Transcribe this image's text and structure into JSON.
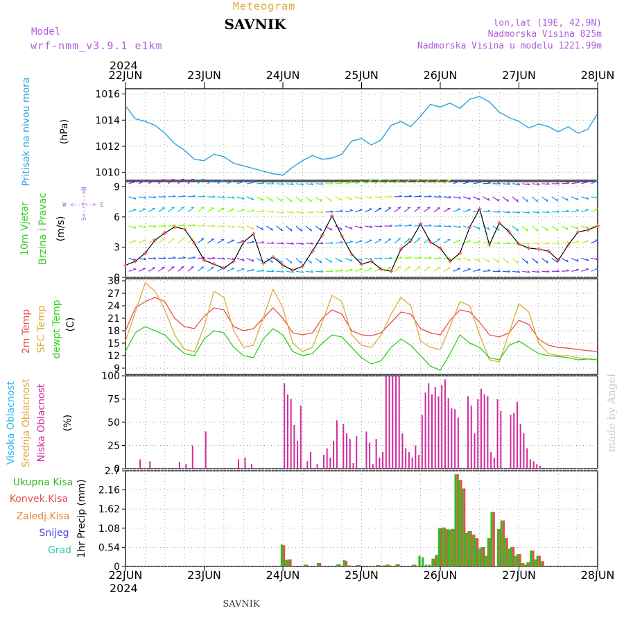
{
  "header": {
    "meteogram_label": "Meteogram",
    "station": "SAVNIK",
    "model_label": "Model",
    "model_name": "wrf-nmm_v3.9.1 e1km",
    "lonlat": "lon,lat (19E, 42.9N)",
    "elevation": "Nadmorska Visina 825m",
    "model_elevation": "Nadmorska Visina u modelu 1221.99m",
    "year_top": "2024",
    "year_bottom": "2024",
    "footer_station": "SAVNIK",
    "credit": "made by Angel"
  },
  "colors": {
    "pressure": "#29a3e0",
    "temp2m": "#e8504a",
    "sfc_temp": "#e0a838",
    "dewpt": "#33cc22",
    "wind_speed": "#000000",
    "wind_markers": "#e8504a",
    "title_orange": "#e0a838",
    "meta_purple": "#b05de0",
    "high_cloud": "#29b8e8",
    "mid_cloud": "#d8a838",
    "low_cloud": "#d02a9e",
    "total_precip": "#33bb22",
    "convective": "#e8504a",
    "freezing": "#f08030",
    "snow": "#4848e8",
    "graupel": "#33c8b8",
    "credit": "#cccccc"
  },
  "dates": [
    "22JUN",
    "23JUN",
    "24JUN",
    "25JUN",
    "26JUN",
    "27JUN",
    "28JUN"
  ],
  "panels": {
    "pressure": {
      "label": "Pritisak na nivou mora",
      "unit": "(hPa)",
      "ticks": [
        "1010",
        "1012",
        "1014",
        "1016"
      ]
    },
    "wind": {
      "label1": "10m Vjetar",
      "label2": "Brzina i Pravac",
      "unit": "(m/s)",
      "ticks": [
        "0",
        "3",
        "6",
        "9"
      ],
      "compass_we": "W <--|--> E",
      "compass_ns": "S<--|-->N"
    },
    "temp": {
      "label1": "2m Temp",
      "label2": "SFC Temp",
      "label3": "dewpt Temp",
      "unit": "(C)",
      "ticks": [
        "9",
        "12",
        "15",
        "18",
        "21",
        "24",
        "27",
        "30"
      ]
    },
    "cloud": {
      "label1": "Visoka Oblacnost",
      "label2": "Srednja Oblacnost",
      "label3": "Niska Oblacnost",
      "unit": "(%)",
      "ticks": [
        "0",
        "25",
        "50",
        "75",
        "100"
      ]
    },
    "precip": {
      "label": "1hr Precip (mm)",
      "ticks": [
        "0",
        "0.54",
        "1.08",
        "1.62",
        "2.16",
        "2.7"
      ],
      "legend": [
        "Ukupna Kisa",
        "Konvek.Kisa",
        "Zaledj.Kisa",
        "Snijeg",
        "Grad"
      ]
    }
  },
  "chart_data": [
    {
      "type": "line",
      "title": "Pritisak na nivou mora",
      "ylabel": "(hPa)",
      "ylim": [
        1009.4,
        1016.4
      ],
      "x": [
        0,
        3,
        6,
        9,
        12,
        15,
        18,
        21,
        24,
        27,
        30,
        33,
        36,
        39,
        42,
        45,
        48,
        51,
        54,
        57,
        60,
        63,
        66,
        69,
        72,
        75,
        78,
        81,
        84,
        87,
        90,
        93,
        96,
        99,
        102,
        105,
        108,
        111,
        114,
        117,
        120,
        123,
        126,
        129,
        132,
        135,
        138,
        141,
        144
      ],
      "series": [
        {
          "values": [
            1015.1,
            1014.1,
            1013.9,
            1013.6,
            1013.0,
            1012.2,
            1011.7,
            1011.0,
            1010.9,
            1011.4,
            1011.2,
            1010.7,
            1010.5,
            1010.3,
            1010.1,
            1009.9,
            1009.8,
            1010.4,
            1010.9,
            1011.3,
            1011.0,
            1011.1,
            1011.4,
            1012.4,
            1012.6,
            1012.1,
            1012.5,
            1013.6,
            1013.9,
            1013.5,
            1014.3,
            1015.2,
            1015.0,
            1015.3,
            1014.9,
            1015.6,
            1015.8,
            1015.4,
            1014.6,
            1014.2,
            1013.9,
            1013.4,
            1013.7,
            1013.5,
            1013.1,
            1013.5,
            1013.0,
            1013.3,
            1014.5
          ]
        }
      ]
    },
    {
      "type": "line",
      "title": "10m Vjetar Brzina i Pravac",
      "ylabel": "(m/s)",
      "ylim": [
        0,
        9.5
      ],
      "x": [
        0,
        3,
        6,
        9,
        12,
        15,
        18,
        21,
        24,
        27,
        30,
        33,
        36,
        39,
        42,
        45,
        48,
        51,
        54,
        57,
        60,
        63,
        66,
        69,
        72,
        75,
        78,
        81,
        84,
        87,
        90,
        93,
        96,
        99,
        102,
        105,
        108,
        111,
        114,
        117,
        120,
        123,
        126,
        129,
        132,
        135,
        138,
        141,
        144
      ],
      "series": [
        {
          "values": [
            1.2,
            1.6,
            2.4,
            3.7,
            4.4,
            5.0,
            4.8,
            3.4,
            1.7,
            1.3,
            0.9,
            1.6,
            3.5,
            4.3,
            1.4,
            2.0,
            1.2,
            0.7,
            1.1,
            2.6,
            4.2,
            6.1,
            4.1,
            2.3,
            1.3,
            1.6,
            0.8,
            0.6,
            2.8,
            3.6,
            5.3,
            3.5,
            2.9,
            1.6,
            2.4,
            5.0,
            6.8,
            3.2,
            5.4,
            4.5,
            3.3,
            2.9,
            2.8,
            2.6,
            1.7,
            3.2,
            4.5,
            4.7,
            5.1
          ]
        }
      ]
    },
    {
      "type": "line",
      "title": "2m Temp / SFC Temp / dewpt Temp",
      "ylabel": "(C)",
      "ylim": [
        7.5,
        30.5
      ],
      "x": [
        0,
        3,
        6,
        9,
        12,
        15,
        18,
        21,
        24,
        27,
        30,
        33,
        36,
        39,
        42,
        45,
        48,
        51,
        54,
        57,
        60,
        63,
        66,
        69,
        72,
        75,
        78,
        81,
        84,
        87,
        90,
        93,
        96,
        99,
        102,
        105,
        108,
        111,
        114,
        117,
        120,
        123,
        126,
        129,
        132,
        135,
        138,
        141,
        144
      ],
      "series": [
        {
          "name": "2m Temp",
          "values": [
            18.0,
            23.5,
            25.0,
            26.0,
            25.0,
            21.0,
            19.0,
            18.5,
            21.5,
            23.5,
            23.0,
            19.0,
            18.0,
            18.5,
            21.0,
            23.5,
            21.0,
            17.5,
            17.0,
            17.5,
            21.0,
            23.0,
            22.0,
            18.0,
            17.0,
            16.8,
            17.5,
            20.0,
            22.5,
            22.0,
            18.5,
            17.5,
            17.0,
            20.5,
            23.0,
            22.5,
            20.0,
            17.0,
            16.5,
            17.5,
            20.5,
            19.5,
            16.0,
            14.5,
            14.0,
            13.8,
            13.5,
            13.2,
            13.0
          ]
        },
        {
          "name": "SFC Temp",
          "values": [
            15.5,
            22.5,
            29.5,
            27.5,
            23.0,
            17.0,
            13.5,
            13.0,
            19.0,
            27.5,
            26.0,
            18.0,
            14.0,
            14.5,
            21.0,
            28.0,
            23.5,
            15.0,
            13.0,
            14.0,
            20.0,
            26.5,
            25.0,
            17.0,
            14.5,
            14.0,
            17.0,
            22.0,
            26.0,
            24.0,
            15.5,
            14.0,
            13.5,
            19.0,
            25.0,
            24.0,
            17.0,
            11.0,
            10.5,
            17.5,
            24.5,
            22.5,
            15.0,
            12.5,
            12.0,
            12.0,
            11.5,
            11.2,
            11.0
          ]
        },
        {
          "name": "dewpt Temp",
          "values": [
            13.0,
            17.5,
            19.0,
            18.0,
            17.0,
            14.5,
            12.5,
            12.0,
            16.0,
            18.0,
            17.5,
            14.0,
            12.0,
            11.5,
            16.0,
            18.5,
            17.0,
            13.0,
            12.0,
            12.5,
            15.0,
            17.0,
            16.5,
            14.0,
            11.5,
            10.0,
            10.8,
            14.0,
            16.0,
            14.5,
            12.0,
            9.5,
            8.5,
            12.5,
            17.0,
            15.0,
            14.0,
            11.5,
            11.0,
            14.5,
            15.5,
            14.0,
            12.5,
            12.0,
            11.8,
            11.5,
            11.0,
            11.2,
            11.0
          ]
        }
      ]
    },
    {
      "type": "bar",
      "title": "Visoka / Srednja / Niska Oblacnost",
      "ylabel": "(%)",
      "ylim": [
        0,
        100
      ],
      "x": [
        4,
        7,
        16,
        18,
        20,
        24,
        34,
        36,
        38,
        48,
        49,
        50,
        51,
        52,
        53,
        55,
        56,
        58,
        60,
        61,
        62,
        63,
        64,
        66,
        67,
        68,
        69,
        70,
        73,
        74,
        75,
        76,
        77,
        78,
        79,
        80,
        81,
        82,
        83,
        84,
        85,
        86,
        87,
        88,
        89,
        90,
        91,
        92,
        93,
        94,
        95,
        96,
        97,
        98,
        99,
        100,
        101,
        104,
        105,
        106,
        107,
        108,
        109,
        110,
        111,
        112,
        113,
        114,
        117,
        118,
        119,
        120,
        121,
        122,
        123,
        124,
        125,
        126,
        130,
        131,
        132,
        133,
        134,
        135
      ],
      "series": [
        {
          "name": "Visoka Oblacnost",
          "values": [
            0,
            0,
            0,
            0,
            0,
            0,
            0,
            0,
            0,
            0,
            0,
            0,
            0,
            0,
            0,
            0,
            0,
            0,
            0,
            0,
            0,
            0,
            0,
            0,
            0,
            0,
            0,
            0,
            0,
            0,
            0,
            0,
            0,
            0,
            0,
            0,
            0,
            0,
            0,
            0,
            0,
            0,
            0,
            0,
            0,
            0,
            0,
            0,
            0,
            0,
            0,
            0,
            0,
            0,
            0,
            0,
            0,
            0,
            0,
            0,
            0,
            0,
            0,
            0,
            0,
            0,
            0,
            0,
            0,
            0,
            0,
            0,
            0,
            0,
            0,
            0,
            0,
            0,
            0,
            0,
            0,
            0,
            0,
            0
          ]
        },
        {
          "name": "Srednja Oblacnost",
          "values": [
            0,
            0,
            0,
            0,
            0,
            0,
            0,
            0,
            0,
            0,
            0,
            0,
            0,
            0,
            0,
            0,
            0,
            0,
            0,
            0,
            0,
            0,
            0,
            0,
            0,
            0,
            0,
            0,
            0,
            0,
            0,
            0,
            0,
            0,
            0,
            0,
            0,
            0,
            0,
            0,
            0,
            0,
            0,
            0,
            0,
            0,
            0,
            0,
            0,
            0,
            0,
            0,
            0,
            0,
            0,
            0,
            0,
            0,
            0,
            0,
            0,
            0,
            0,
            0,
            0,
            0,
            0,
            0,
            0,
            0,
            0,
            0,
            0,
            0,
            0,
            0,
            0,
            0,
            0,
            0,
            0,
            0,
            0,
            0
          ]
        },
        {
          "name": "Niska Oblacnost",
          "values": [
            10,
            8,
            7,
            5,
            25,
            40,
            10,
            12,
            5,
            92,
            80,
            75,
            47,
            30,
            68,
            8,
            18,
            5,
            15,
            22,
            12,
            30,
            52,
            48,
            38,
            32,
            6,
            35,
            40,
            28,
            5,
            32,
            12,
            18,
            100,
            100,
            100,
            100,
            100,
            38,
            22,
            18,
            12,
            25,
            15,
            58,
            82,
            92,
            80,
            88,
            78,
            90,
            96,
            76,
            65,
            64,
            55,
            78,
            68,
            38,
            75,
            86,
            80,
            78,
            18,
            12,
            75,
            62,
            58,
            60,
            72,
            48,
            38,
            22,
            10,
            8,
            5,
            3,
            0,
            0,
            0,
            0,
            0,
            0
          ]
        }
      ]
    },
    {
      "type": "bar",
      "title": "1hr Precip",
      "ylabel": "(mm)",
      "ylim": [
        0,
        2.7
      ],
      "x": [
        48,
        49,
        50,
        55,
        59,
        65,
        67,
        68,
        71,
        75,
        77,
        79,
        80,
        83,
        88,
        89,
        90,
        91,
        92,
        93,
        94,
        95,
        96,
        97,
        98,
        99,
        100,
        101,
        102,
        103,
        104,
        105,
        106,
        107,
        108,
        109,
        110,
        111,
        112,
        114,
        115,
        116,
        117,
        118,
        119,
        120,
        121,
        122,
        123,
        124,
        125,
        126,
        127
      ],
      "series": [
        {
          "name": "Ukupna Kisa",
          "values": [
            0.62,
            0.18,
            0.2,
            0.05,
            0.1,
            0.06,
            0.18,
            0.03,
            0.04,
            0.02,
            0.04,
            0.03,
            0.05,
            0.06,
            0.05,
            0.02,
            0.3,
            0.26,
            0.05,
            0.05,
            0.22,
            0.32,
            1.08,
            1.1,
            1.05,
            1.04,
            1.06,
            2.6,
            2.44,
            2.2,
            0.95,
            1.0,
            0.9,
            0.8,
            0.5,
            0.55,
            0.3,
            0.8,
            1.54,
            1.06,
            1.3,
            0.8,
            0.5,
            0.55,
            0.3,
            0.35,
            0.1,
            0.05,
            0.12,
            0.45,
            0.2,
            0.3,
            0.15
          ]
        },
        {
          "name": "Konvek.Kisa",
          "values": [
            0.6,
            0.18,
            0.2,
            0.05,
            0.1,
            0.06,
            0.16,
            0.03,
            0.04,
            0.02,
            0.04,
            0.03,
            0.05,
            0.06,
            0.05,
            0.02,
            0.0,
            0.0,
            0.0,
            0.0,
            0.22,
            0.32,
            1.08,
            1.1,
            1.05,
            1.04,
            1.06,
            2.6,
            2.44,
            2.2,
            0.95,
            1.0,
            0.9,
            0.8,
            0.5,
            0.55,
            0.3,
            0.8,
            1.54,
            1.06,
            1.3,
            0.8,
            0.5,
            0.55,
            0.3,
            0.35,
            0.1,
            0.05,
            0.12,
            0.45,
            0.2,
            0.3,
            0.15
          ]
        }
      ]
    }
  ]
}
